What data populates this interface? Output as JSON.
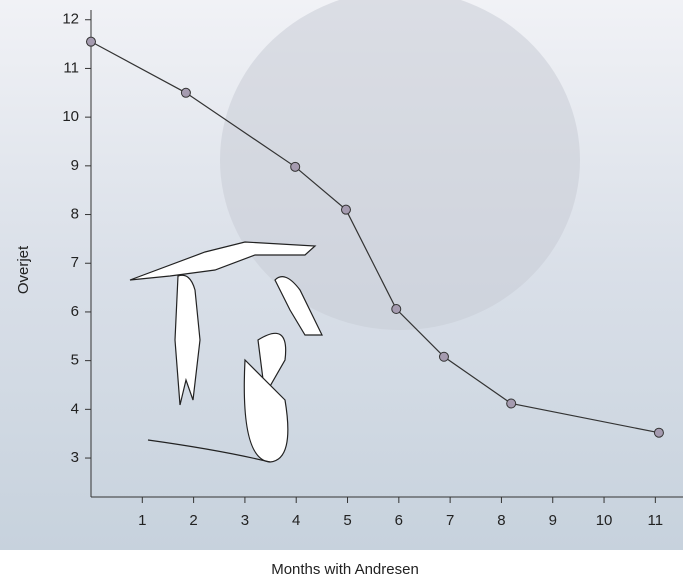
{
  "chart_data": {
    "type": "line",
    "x_label": "Months with Andresen",
    "y_label": "Overjet",
    "x": [
      0,
      1.85,
      3.98,
      4.97,
      5.95,
      6.88,
      8.19,
      11.07
    ],
    "series": [
      {
        "name": "Overjet",
        "color": "#333333",
        "marker_color": "#a59bb0",
        "values": [
          11.55,
          10.5,
          8.98,
          8.1,
          6.06,
          5.08,
          4.12,
          3.52
        ]
      }
    ],
    "xlim": [
      0,
      11.5
    ],
    "xticks": [
      1,
      2,
      3,
      4,
      5,
      6,
      7,
      8,
      9,
      10,
      11
    ],
    "ylim": [
      2.2,
      12.2
    ],
    "yticks": [
      3,
      4,
      5,
      6,
      7,
      8,
      9,
      10,
      11,
      12
    ],
    "grid": false
  }
}
